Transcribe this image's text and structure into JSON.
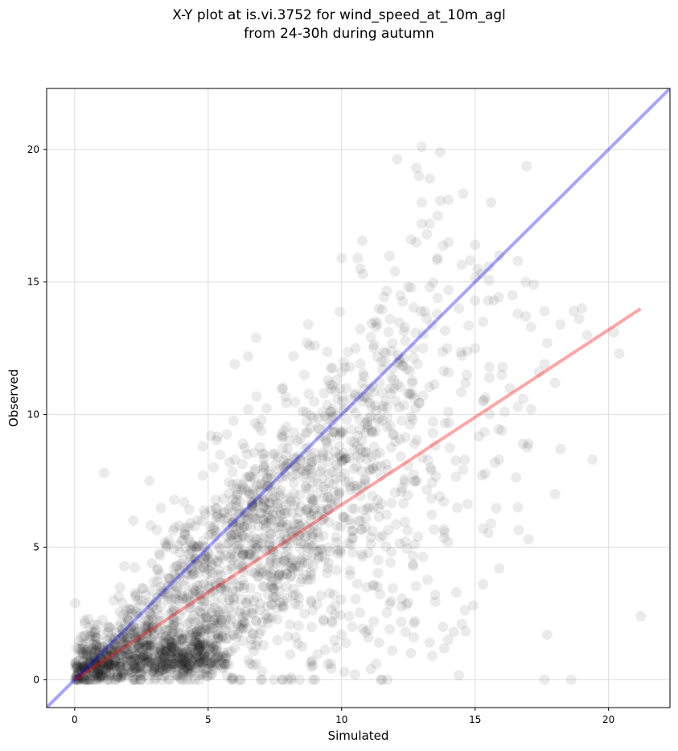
{
  "chart_data": {
    "type": "scatter",
    "title_lines": [
      "X-Y plot at is.vi.3752 for wind_speed_at_10m_agl",
      "from 24-30h during autumn"
    ],
    "xlabel": "Simulated",
    "ylabel": "Observed",
    "xlim": [
      -1.05,
      22.3
    ],
    "ylim": [
      -1.05,
      22.3
    ],
    "xticks": [
      0,
      5,
      10,
      15,
      20
    ],
    "yticks": [
      0,
      5,
      10,
      15,
      20
    ],
    "xtick_labels": [
      "0",
      "5",
      "10",
      "15",
      "20"
    ],
    "ytick_labels": [
      "0",
      "5",
      "10",
      "15",
      "20"
    ],
    "grid": true,
    "colors": {
      "points": "#000000",
      "identity_line": "#0000ff",
      "fit_line": "#ff0000",
      "grid": "#dddddd"
    },
    "reference_lines": [
      {
        "role": "identity",
        "slope": 1.0,
        "intercept": 0.0,
        "x_range": [
          -1.05,
          22.3
        ]
      },
      {
        "role": "fit",
        "slope": 0.66,
        "intercept": 0.0,
        "x_range": [
          0.0,
          21.2
        ]
      }
    ],
    "highlighted_points": [
      [
        13.0,
        20.1
      ],
      [
        13.7,
        19.9
      ],
      [
        12.8,
        19.3
      ],
      [
        12.9,
        19.0
      ],
      [
        13.3,
        18.9
      ],
      [
        14.0,
        18.1
      ],
      [
        13.0,
        18.0
      ],
      [
        15.6,
        18.0
      ],
      [
        13.6,
        17.5
      ],
      [
        13.0,
        17.2
      ],
      [
        13.3,
        17.2
      ],
      [
        13.2,
        16.8
      ],
      [
        12.6,
        16.6
      ],
      [
        12.8,
        16.5
      ],
      [
        14.0,
        16.5
      ],
      [
        15.0,
        16.4
      ],
      [
        15.9,
        16.0
      ],
      [
        13.6,
        15.9
      ],
      [
        10.0,
        15.9
      ],
      [
        10.6,
        15.9
      ],
      [
        16.6,
        15.8
      ],
      [
        10.7,
        15.5
      ],
      [
        15.1,
        15.5
      ],
      [
        10.8,
        15.3
      ],
      [
        12.0,
        15.4
      ],
      [
        16.9,
        15.0
      ],
      [
        17.2,
        14.9
      ],
      [
        13.3,
        14.8
      ],
      [
        14.0,
        14.7
      ],
      [
        13.6,
        14.4
      ],
      [
        12.2,
        14.5
      ],
      [
        11.4,
        14.0
      ],
      [
        15.7,
        14.3
      ],
      [
        16.4,
        14.5
      ],
      [
        15.0,
        14.3
      ],
      [
        18.7,
        13.9
      ],
      [
        19.0,
        14.0
      ],
      [
        17.6,
        13.9
      ],
      [
        16.6,
        13.8
      ],
      [
        14.4,
        14.0
      ],
      [
        18.2,
        13.4
      ],
      [
        17.1,
        13.3
      ],
      [
        18.9,
        13.6
      ],
      [
        15.3,
        13.5
      ],
      [
        16.9,
        13.7
      ],
      [
        20.2,
        13.1
      ],
      [
        19.2,
        13.0
      ],
      [
        17.7,
        12.7
      ],
      [
        20.4,
        12.3
      ],
      [
        15.0,
        12.5
      ],
      [
        16.0,
        11.5
      ],
      [
        17.6,
        11.9
      ],
      [
        18.0,
        11.2
      ],
      [
        17.4,
        11.6
      ],
      [
        16.3,
        11.0
      ],
      [
        16.8,
        10.6
      ],
      [
        16.6,
        10.3
      ],
      [
        17.1,
        10.2
      ],
      [
        15.3,
        10.5
      ],
      [
        14.0,
        10.1
      ],
      [
        16.0,
        9.4
      ],
      [
        17.0,
        8.9
      ],
      [
        16.8,
        8.9
      ],
      [
        18.2,
        8.7
      ],
      [
        19.4,
        8.3
      ],
      [
        15.9,
        8.3
      ],
      [
        18.0,
        7.0
      ],
      [
        16.6,
        6.5
      ],
      [
        15.6,
        5.9
      ],
      [
        17.0,
        5.3
      ],
      [
        15.3,
        5.7
      ],
      [
        15.9,
        4.2
      ],
      [
        15.3,
        3.6
      ],
      [
        14.5,
        2.1
      ],
      [
        13.8,
        2.0
      ],
      [
        13.5,
        3.2
      ],
      [
        14.2,
        1.8
      ],
      [
        14.0,
        1.5
      ],
      [
        13.3,
        1.4
      ],
      [
        13.4,
        0.9
      ],
      [
        12.4,
        1.8
      ],
      [
        12.7,
        1.6
      ],
      [
        12.6,
        1.0
      ],
      [
        12.5,
        2.9
      ],
      [
        11.8,
        1.9
      ],
      [
        11.9,
        1.1
      ],
      [
        11.4,
        1.4
      ],
      [
        11.2,
        2.2
      ],
      [
        11.0,
        1.6
      ],
      [
        10.9,
        1.8
      ],
      [
        11.3,
        0.6
      ],
      [
        11.1,
        0.4
      ],
      [
        10.5,
        0.2
      ],
      [
        10.1,
        0.3
      ],
      [
        9.6,
        0.6
      ],
      [
        10.0,
        1.7
      ],
      [
        10.4,
        2.0
      ],
      [
        9.8,
        1.2
      ],
      [
        21.2,
        2.4
      ],
      [
        17.7,
        1.7
      ],
      [
        17.6,
        0.0
      ],
      [
        18.6,
        0.0
      ],
      [
        1.1,
        7.8
      ],
      [
        2.8,
        7.5
      ],
      [
        4.1,
        6.7
      ],
      [
        2.2,
        6.0
      ],
      [
        5.1,
        9.2
      ],
      [
        4.8,
        8.8
      ],
      [
        6.3,
        8.9
      ],
      [
        5.8,
        8.2
      ],
      [
        4.8,
        7.7
      ],
      [
        6.0,
        8.3
      ],
      [
        6.5,
        10.2
      ],
      [
        7.0,
        9.8
      ],
      [
        6.8,
        12.9
      ],
      [
        6.5,
        12.2
      ],
      [
        6.0,
        11.9
      ],
      [
        7.8,
        11.0
      ],
      [
        8.2,
        12.2
      ],
      [
        8.8,
        12.6
      ],
      [
        9.0,
        12.6
      ],
      [
        8.6,
        11.5
      ]
    ]
  }
}
